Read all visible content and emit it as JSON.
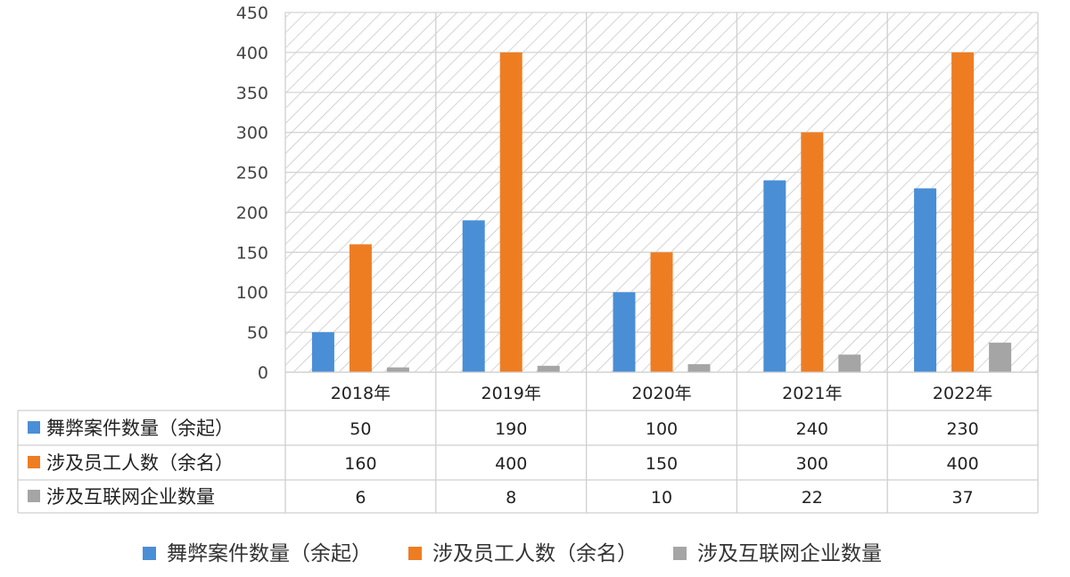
{
  "chart_data": {
    "type": "bar",
    "categories": [
      "2018年",
      "2019年",
      "2020年",
      "2021年",
      "2022年"
    ],
    "series": [
      {
        "name": "舞弊案件数量（余起）",
        "values": [
          50,
          190,
          100,
          240,
          230
        ],
        "color": "#4a8ed6"
      },
      {
        "name": "涉及员工人数（余名）",
        "values": [
          160,
          400,
          150,
          300,
          400
        ],
        "color": "#ee7d22"
      },
      {
        "name": "涉及互联网企业数量",
        "values": [
          6,
          8,
          10,
          22,
          37
        ],
        "color": "#a5a5a5"
      }
    ],
    "ylim": [
      0,
      450
    ],
    "yticks": [
      0,
      50,
      100,
      150,
      200,
      250,
      300,
      350,
      400,
      450
    ],
    "grid": true,
    "legend": "bottom",
    "data_table": true
  }
}
